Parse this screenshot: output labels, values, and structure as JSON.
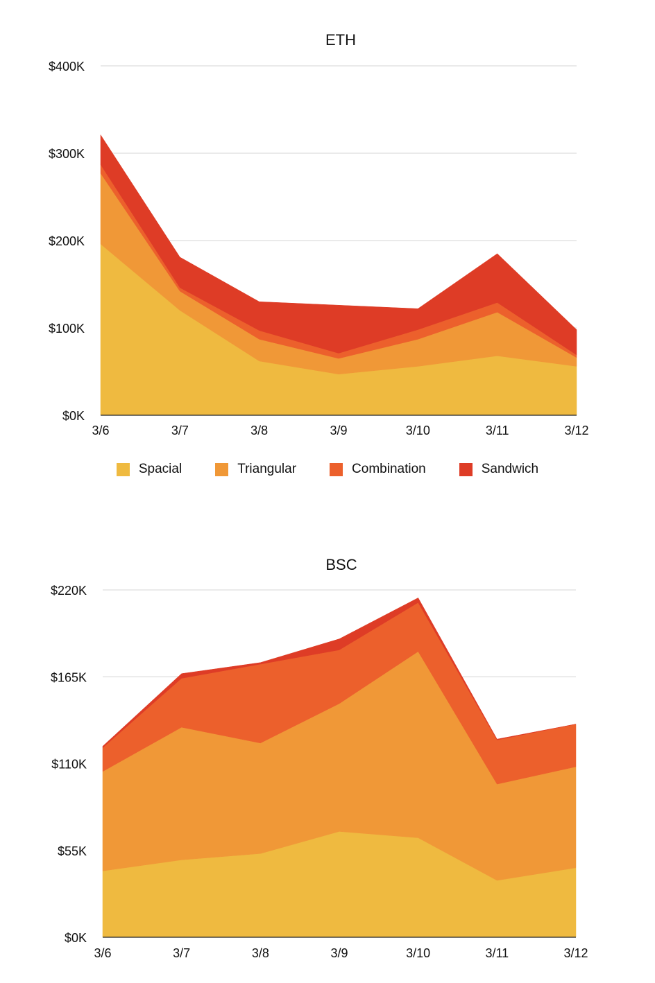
{
  "colors": {
    "Spacial": "#EFBA40",
    "Triangular": "#F09837",
    "Combination": "#EC602C",
    "Sandwich": "#DE3C26"
  },
  "legend": [
    "Spacial",
    "Triangular",
    "Combination",
    "Sandwich"
  ],
  "chart_data": [
    {
      "type": "area",
      "stacked": true,
      "title": "ETH",
      "categories": [
        "3/6",
        "3/7",
        "3/8",
        "3/9",
        "3/10",
        "3/11",
        "3/12"
      ],
      "ylim": [
        0,
        400
      ],
      "yticks": [
        0,
        100,
        200,
        300,
        400
      ],
      "ytick_labels": [
        "$0K",
        "$100K",
        "$200K",
        "$300K",
        "$400K"
      ],
      "unit": "$K",
      "grid": true,
      "legend_position": "bottom",
      "series": [
        {
          "name": "Spacial",
          "values": [
            196,
            120,
            62,
            47,
            56,
            68,
            56
          ]
        },
        {
          "name": "Triangular",
          "values": [
            81,
            22,
            25,
            18,
            31,
            50,
            10
          ]
        },
        {
          "name": "Combination",
          "values": [
            10,
            4,
            10,
            6,
            11,
            11,
            3
          ]
        },
        {
          "name": "Sandwich",
          "values": [
            34,
            35,
            33,
            55,
            24,
            56,
            29
          ]
        }
      ]
    },
    {
      "type": "area",
      "stacked": true,
      "title": "BSC",
      "categories": [
        "3/6",
        "3/7",
        "3/8",
        "3/9",
        "3/10",
        "3/11",
        "3/12"
      ],
      "ylim": [
        0,
        220
      ],
      "yticks": [
        0,
        55,
        110,
        165,
        220
      ],
      "ytick_labels": [
        "$0K",
        "$55K",
        "$110K",
        "$165K",
        "$220K"
      ],
      "unit": "$K",
      "grid": true,
      "series": [
        {
          "name": "Spacial",
          "values": [
            42,
            49,
            53,
            67,
            63,
            36,
            44
          ]
        },
        {
          "name": "Triangular",
          "values": [
            63,
            84,
            70,
            81,
            118,
            61,
            64
          ]
        },
        {
          "name": "Combination",
          "values": [
            15,
            31,
            50,
            34,
            31,
            28,
            27
          ]
        },
        {
          "name": "Sandwich",
          "values": [
            1,
            3,
            1,
            7,
            3,
            0.5,
            0
          ]
        }
      ]
    }
  ]
}
